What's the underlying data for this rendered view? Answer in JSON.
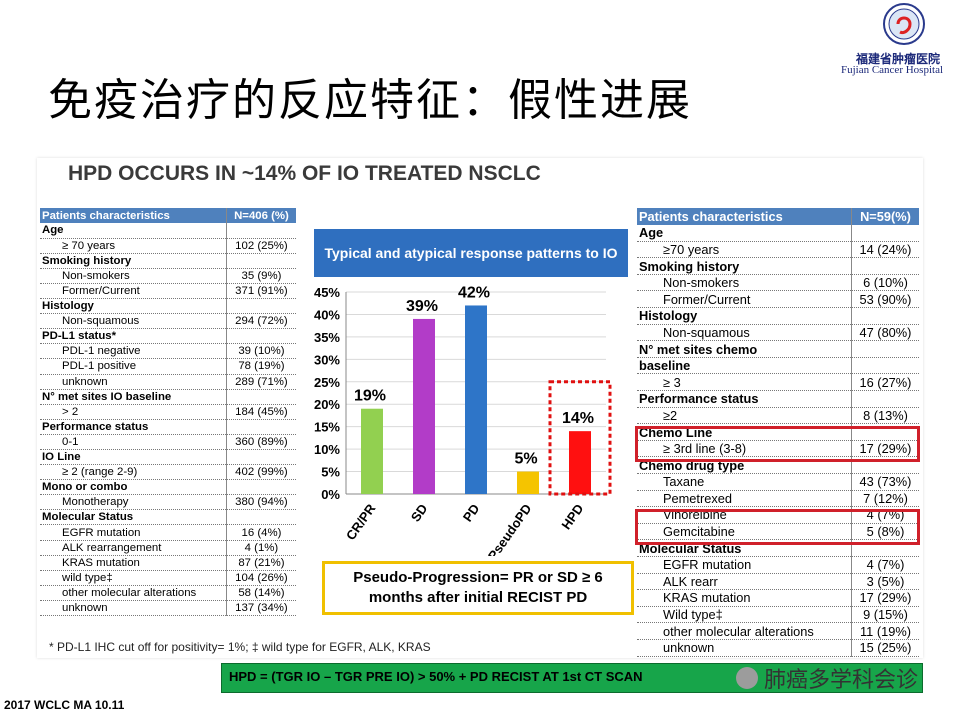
{
  "slide": {
    "title": "免疫治疗的反应特征：假性进展",
    "hospital_cn": "福建省肿瘤医院",
    "hospital_en": "Fujian Cancer Hospital",
    "panel_title": "HPD OCCURS IN ~14% OF IO TREATED NSCLC",
    "footnote": "* PD-L1 IHC cut off for positivity= 1%; ‡ wild type for EGFR, ALK, KRAS",
    "footer": "2017 WCLC MA 10.11",
    "hpd_definition": "HPD = (TGR IO – TGR PRE IO) > 50% + PD RECIST AT 1st CT SCAN",
    "wechat_name": "肺癌多学科会诊",
    "pseudo_progression": "Pseudo-Progression= PR or SD ≥ 6 months after initial RECIST PD"
  },
  "left_table": {
    "header": [
      "Patients characteristics",
      "N=406 (%)"
    ],
    "rows": [
      {
        "label": "Age",
        "value": "",
        "section": true
      },
      {
        "label": "≥ 70 years",
        "value": "102 (25%)"
      },
      {
        "label": "Smoking history",
        "value": "",
        "section": true
      },
      {
        "label": "Non-smokers",
        "value": "35 (9%)"
      },
      {
        "label": "Former/Current",
        "value": "371 (91%)"
      },
      {
        "label": "Histology",
        "value": "",
        "section": true
      },
      {
        "label": "Non-squamous",
        "value": "294 (72%)"
      },
      {
        "label": "PD-L1 status*",
        "value": "",
        "section": true
      },
      {
        "label": "PDL-1 negative",
        "value": "39 (10%)"
      },
      {
        "label": "PDL-1 positive",
        "value": "78 (19%)"
      },
      {
        "label": "unknown",
        "value": "289 (71%)"
      },
      {
        "label": "N° met sites IO baseline",
        "value": "",
        "section": true
      },
      {
        "label": "> 2",
        "value": "184 (45%)"
      },
      {
        "label": "Performance status",
        "value": "",
        "section": true
      },
      {
        "label": "0-1",
        "value": "360 (89%)"
      },
      {
        "label": "IO Line",
        "value": "",
        "section": true
      },
      {
        "label": "≥ 2 (range 2-9)",
        "value": "402 (99%)"
      },
      {
        "label": "Mono or combo",
        "value": "",
        "section": true
      },
      {
        "label": "Monotherapy",
        "value": "380 (94%)"
      },
      {
        "label": "Molecular Status",
        "value": "",
        "section": true
      },
      {
        "label": "EGFR mutation",
        "value": "16 (4%)"
      },
      {
        "label": "ALK rearrangement",
        "value": "4 (1%)"
      },
      {
        "label": "KRAS mutation",
        "value": "87 (21%)"
      },
      {
        "label": "wild type‡",
        "value": "104 (26%)"
      },
      {
        "label": "other molecular alterations",
        "value": "58 (14%)"
      },
      {
        "label": "unknown",
        "value": "137 (34%)"
      }
    ]
  },
  "right_table": {
    "header": [
      "Patients characteristics",
      "N=59(%)"
    ],
    "rows": [
      {
        "label": "Age",
        "value": "",
        "section": true
      },
      {
        "label": "≥70 years",
        "value": "14 (24%)"
      },
      {
        "label": "Smoking history",
        "value": "",
        "section": true
      },
      {
        "label": "Non-smokers",
        "value": "6 (10%)"
      },
      {
        "label": "Former/Current",
        "value": "53 (90%)"
      },
      {
        "label": "Histology",
        "value": "",
        "section": true
      },
      {
        "label": "Non-squamous",
        "value": "47 (80%)"
      },
      {
        "label": "N° met sites chemo",
        "value": "",
        "section": true
      },
      {
        "label": "baseline",
        "value": "",
        "section": true
      },
      {
        "label": "≥ 3",
        "value": "16 (27%)"
      },
      {
        "label": "Performance status",
        "value": "",
        "section": true
      },
      {
        "label": "≥2",
        "value": "8 (13%)"
      },
      {
        "label": "Chemo Line",
        "value": "",
        "section": true
      },
      {
        "label": "≥ 3rd line (3-8)",
        "value": "17 (29%)"
      },
      {
        "label": "Chemo drug type",
        "value": "",
        "section": true
      },
      {
        "label": "Taxane",
        "value": "43 (73%)"
      },
      {
        "label": "Pemetrexed",
        "value": "7 (12%)"
      },
      {
        "label": "Vinorelbine",
        "value": "4 (7%)"
      },
      {
        "label": "Gemcitabine",
        "value": "5 (8%)"
      },
      {
        "label": "Molecular Status",
        "value": "",
        "section": true
      },
      {
        "label": "EGFR mutation",
        "value": "4 (7%)"
      },
      {
        "label": "ALK rearr",
        "value": "3 (5%)"
      },
      {
        "label": "KRAS mutation",
        "value": "17 (29%)"
      },
      {
        "label": "Wild type‡",
        "value": "9 (15%)"
      },
      {
        "label": "other molecular alterations",
        "value": "11 (19%)"
      },
      {
        "label": "unknown",
        "value": "15 (25%)"
      }
    ]
  },
  "chart_data": {
    "type": "bar",
    "title": "Typical and atypical response patterns to IO",
    "categories": [
      "CR/PR",
      "SD",
      "PD",
      "PseudoPD",
      "HPD"
    ],
    "values": [
      19,
      39,
      42,
      5,
      14
    ],
    "data_labels": [
      "19%",
      "39%",
      "42%",
      "5%",
      "14%"
    ],
    "colors": [
      "#92d050",
      "#b23cc8",
      "#2e75c8",
      "#f5c400",
      "#ff1010"
    ],
    "ylim": [
      0,
      45
    ],
    "yticks": [
      "0%",
      "5%",
      "10%",
      "15%",
      "20%",
      "25%",
      "30%",
      "35%",
      "40%",
      "45%"
    ],
    "highlight": "HPD",
    "xlabel": "",
    "ylabel": "",
    "grid": true
  }
}
